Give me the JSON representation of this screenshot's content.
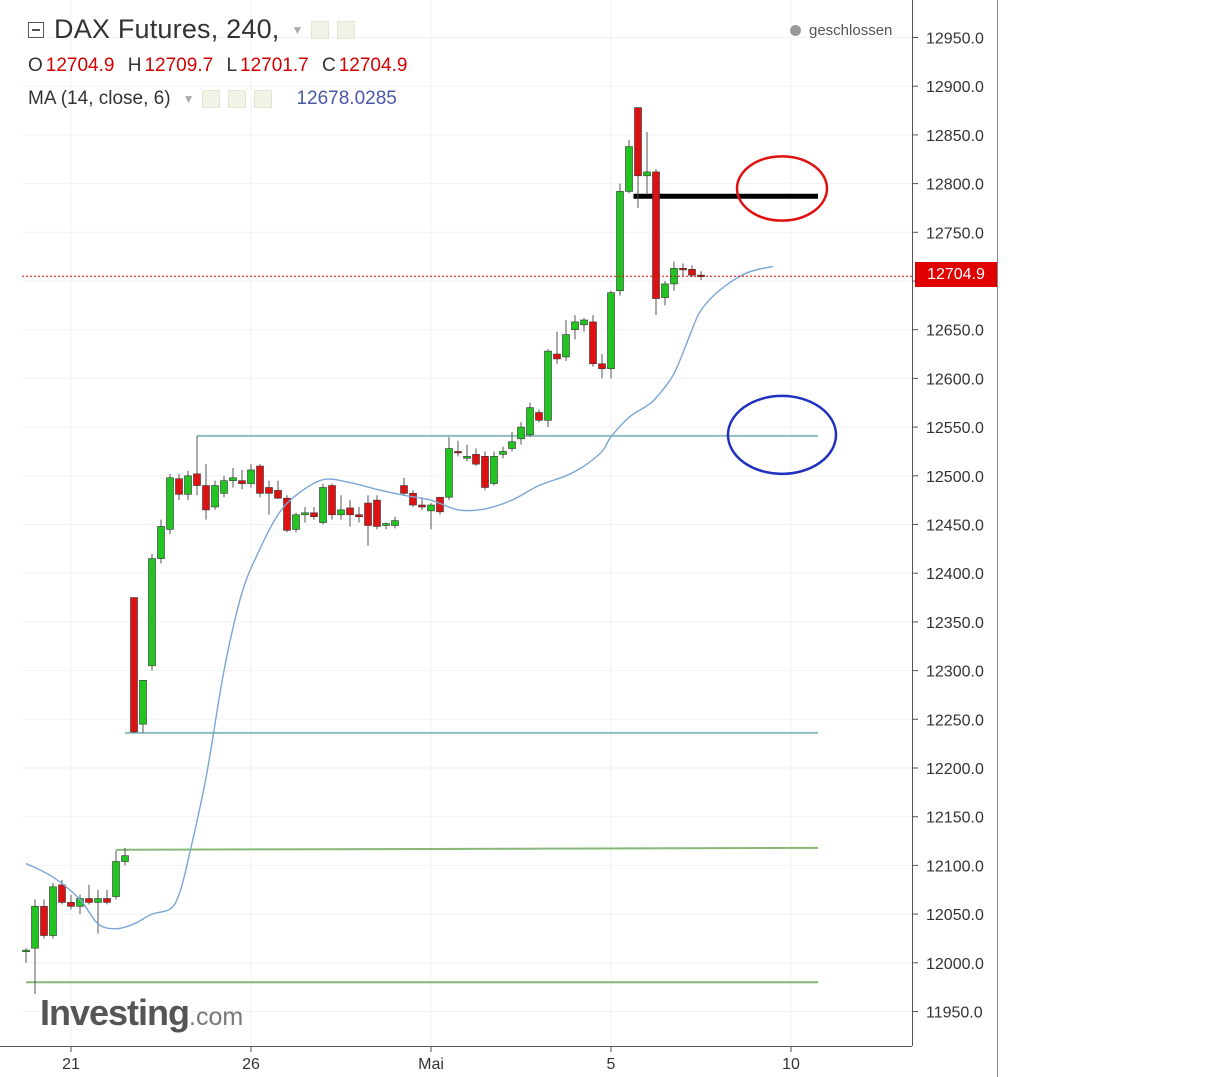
{
  "header": {
    "title": "DAX Futures, 240,",
    "ohlc": [
      {
        "label": "O",
        "value": "12704.9"
      },
      {
        "label": "H",
        "value": "12709.7"
      },
      {
        "label": "L",
        "value": "12701.7"
      },
      {
        "label": "C",
        "value": "12704.9"
      }
    ],
    "indicator_label": "MA (14, close, 6)",
    "indicator_value": "12678.0285",
    "status": "geschlossen"
  },
  "logo": {
    "main": "Investing",
    "suffix": ".com"
  },
  "colors": {
    "up": "#22c422",
    "down": "#dd1111",
    "ma": "#7aa6d6",
    "current_price": "#e00000",
    "hline_teal": "#8fbcbc",
    "hline_green": "#86b878",
    "resistance": "#000000",
    "circle_red": "#e01010",
    "circle_blue": "#2030c0"
  },
  "chart_data": {
    "type": "candlestick",
    "title": "DAX Futures, 240,",
    "ylim": [
      11930,
      12980
    ],
    "y_ticks": [
      "12950.0",
      "12900.0",
      "12850.0",
      "12800.0",
      "12750.0",
      "12700.0",
      "12650.0",
      "12600.0",
      "12550.0",
      "12500.0",
      "12450.0",
      "12400.0",
      "12350.0",
      "12300.0",
      "12250.0",
      "12200.0",
      "12150.0",
      "12100.0",
      "12050.0",
      "12000.0",
      "11950.0"
    ],
    "x_ticks": [
      {
        "label": "21",
        "index": 5
      },
      {
        "label": "26",
        "index": 25
      },
      {
        "label": "Mai",
        "index": 45
      },
      {
        "label": "5",
        "index": 65
      },
      {
        "label": "10",
        "index": 85
      }
    ],
    "current_price": 12704.9,
    "current_price_label": "12704.9",
    "candles": [
      {
        "o": 12012,
        "h": 12015,
        "l": 12000,
        "c": 12013
      },
      {
        "o": 12015,
        "h": 12065,
        "l": 11968,
        "c": 12058
      },
      {
        "o": 12058,
        "h": 12065,
        "l": 12025,
        "c": 12028
      },
      {
        "o": 12028,
        "h": 12082,
        "l": 12025,
        "c": 12078
      },
      {
        "o": 12080,
        "h": 12085,
        "l": 12060,
        "c": 12062
      },
      {
        "o": 12062,
        "h": 12070,
        "l": 12055,
        "c": 12058
      },
      {
        "o": 12058,
        "h": 12070,
        "l": 12050,
        "c": 12066
      },
      {
        "o": 12066,
        "h": 12080,
        "l": 12060,
        "c": 12062
      },
      {
        "o": 12062,
        "h": 12075,
        "l": 12030,
        "c": 12066
      },
      {
        "o": 12066,
        "h": 12075,
        "l": 12060,
        "c": 12062
      },
      {
        "o": 12068,
        "h": 12115,
        "l": 12065,
        "c": 12104
      },
      {
        "o": 12104,
        "h": 12118,
        "l": 12100,
        "c": 12110
      },
      {
        "o": 12375,
        "h": 12375,
        "l": 12236,
        "c": 12237
      },
      {
        "o": 12245,
        "h": 12290,
        "l": 12236,
        "c": 12290
      },
      {
        "o": 12305,
        "h": 12420,
        "l": 12300,
        "c": 12415
      },
      {
        "o": 12415,
        "h": 12455,
        "l": 12410,
        "c": 12448
      },
      {
        "o": 12445,
        "h": 12502,
        "l": 12440,
        "c": 12498
      },
      {
        "o": 12497,
        "h": 12502,
        "l": 12475,
        "c": 12481
      },
      {
        "o": 12481,
        "h": 12505,
        "l": 12475,
        "c": 12500
      },
      {
        "o": 12502,
        "h": 12541,
        "l": 12480,
        "c": 12490
      },
      {
        "o": 12490,
        "h": 12512,
        "l": 12455,
        "c": 12465
      },
      {
        "o": 12468,
        "h": 12495,
        "l": 12465,
        "c": 12490
      },
      {
        "o": 12482,
        "h": 12500,
        "l": 12478,
        "c": 12495
      },
      {
        "o": 12495,
        "h": 12508,
        "l": 12488,
        "c": 12498
      },
      {
        "o": 12495,
        "h": 12506,
        "l": 12486,
        "c": 12492
      },
      {
        "o": 12492,
        "h": 12512,
        "l": 12488,
        "c": 12506
      },
      {
        "o": 12510,
        "h": 12512,
        "l": 12478,
        "c": 12482
      },
      {
        "o": 12488,
        "h": 12495,
        "l": 12460,
        "c": 12482
      },
      {
        "o": 12485,
        "h": 12495,
        "l": 12476,
        "c": 12477
      },
      {
        "o": 12477,
        "h": 12480,
        "l": 12442,
        "c": 12444
      },
      {
        "o": 12445,
        "h": 12462,
        "l": 12442,
        "c": 12460
      },
      {
        "o": 12460,
        "h": 12468,
        "l": 12452,
        "c": 12462
      },
      {
        "o": 12462,
        "h": 12468,
        "l": 12455,
        "c": 12458
      },
      {
        "o": 12452,
        "h": 12492,
        "l": 12450,
        "c": 12488
      },
      {
        "o": 12490,
        "h": 12492,
        "l": 12455,
        "c": 12460
      },
      {
        "o": 12460,
        "h": 12480,
        "l": 12455,
        "c": 12465
      },
      {
        "o": 12467,
        "h": 12475,
        "l": 12448,
        "c": 12460
      },
      {
        "o": 12460,
        "h": 12468,
        "l": 12452,
        "c": 12458
      },
      {
        "o": 12472,
        "h": 12480,
        "l": 12428,
        "c": 12449
      },
      {
        "o": 12475,
        "h": 12480,
        "l": 12445,
        "c": 12448
      },
      {
        "o": 12449,
        "h": 12452,
        "l": 12445,
        "c": 12451
      },
      {
        "o": 12449,
        "h": 12458,
        "l": 12446,
        "c": 12454
      },
      {
        "o": 12490,
        "h": 12498,
        "l": 12480,
        "c": 12482
      },
      {
        "o": 12482,
        "h": 12485,
        "l": 12468,
        "c": 12470
      },
      {
        "o": 12470,
        "h": 12478,
        "l": 12465,
        "c": 12468
      },
      {
        "o": 12464,
        "h": 12472,
        "l": 12445,
        "c": 12470
      },
      {
        "o": 12478,
        "h": 12478,
        "l": 12460,
        "c": 12463
      },
      {
        "o": 12478,
        "h": 12540,
        "l": 12475,
        "c": 12528
      },
      {
        "o": 12525,
        "h": 12536,
        "l": 12520,
        "c": 12524
      },
      {
        "o": 12518,
        "h": 12532,
        "l": 12515,
        "c": 12520
      },
      {
        "o": 12522,
        "h": 12528,
        "l": 12510,
        "c": 12512
      },
      {
        "o": 12520,
        "h": 12525,
        "l": 12485,
        "c": 12488
      },
      {
        "o": 12492,
        "h": 12525,
        "l": 12490,
        "c": 12520
      },
      {
        "o": 12522,
        "h": 12530,
        "l": 12518,
        "c": 12525
      },
      {
        "o": 12528,
        "h": 12545,
        "l": 12525,
        "c": 12535
      },
      {
        "o": 12538,
        "h": 12555,
        "l": 12532,
        "c": 12550
      },
      {
        "o": 12542,
        "h": 12575,
        "l": 12540,
        "c": 12570
      },
      {
        "o": 12565,
        "h": 12568,
        "l": 12555,
        "c": 12557
      },
      {
        "o": 12557,
        "h": 12630,
        "l": 12550,
        "c": 12628
      },
      {
        "o": 12625,
        "h": 12648,
        "l": 12615,
        "c": 12620
      },
      {
        "o": 12622,
        "h": 12660,
        "l": 12618,
        "c": 12645
      },
      {
        "o": 12650,
        "h": 12665,
        "l": 12640,
        "c": 12658
      },
      {
        "o": 12655,
        "h": 12662,
        "l": 12648,
        "c": 12660
      },
      {
        "o": 12658,
        "h": 12665,
        "l": 12612,
        "c": 12615
      },
      {
        "o": 12615,
        "h": 12625,
        "l": 12600,
        "c": 12610
      },
      {
        "o": 12610,
        "h": 12690,
        "l": 12600,
        "c": 12688
      },
      {
        "o": 12690,
        "h": 12800,
        "l": 12685,
        "c": 12792
      },
      {
        "o": 12792,
        "h": 12845,
        "l": 12790,
        "c": 12838
      },
      {
        "o": 12878,
        "h": 12878,
        "l": 12775,
        "c": 12808
      },
      {
        "o": 12808,
        "h": 12853,
        "l": 12790,
        "c": 12812
      },
      {
        "o": 12812,
        "h": 12815,
        "l": 12665,
        "c": 12682
      },
      {
        "o": 12683,
        "h": 12700,
        "l": 12675,
        "c": 12697
      },
      {
        "o": 12697,
        "h": 12720,
        "l": 12690,
        "c": 12713
      },
      {
        "o": 12713,
        "h": 12718,
        "l": 12705,
        "c": 12712
      },
      {
        "o": 12712,
        "h": 12716,
        "l": 12704,
        "c": 12706
      },
      {
        "o": 12706,
        "h": 12710,
        "l": 12701,
        "c": 12705
      }
    ],
    "ma_series": {
      "name": "MA (14, close, 6)",
      "points": [
        [
          0,
          12102
        ],
        [
          3,
          12088
        ],
        [
          6,
          12065
        ],
        [
          8,
          12040
        ],
        [
          10,
          12035
        ],
        [
          12,
          12040
        ],
        [
          14,
          12050
        ],
        [
          16,
          12055
        ],
        [
          17,
          12070
        ],
        [
          18,
          12105
        ],
        [
          20,
          12190
        ],
        [
          22,
          12300
        ],
        [
          24,
          12380
        ],
        [
          26,
          12425
        ],
        [
          28,
          12460
        ],
        [
          30,
          12480
        ],
        [
          33,
          12496
        ],
        [
          36,
          12493
        ],
        [
          39,
          12486
        ],
        [
          42,
          12480
        ],
        [
          45,
          12475
        ],
        [
          48,
          12465
        ],
        [
          51,
          12466
        ],
        [
          54,
          12475
        ],
        [
          57,
          12490
        ],
        [
          60,
          12500
        ],
        [
          62,
          12510
        ],
        [
          64,
          12525
        ],
        [
          65,
          12540
        ],
        [
          67,
          12560
        ],
        [
          69,
          12572
        ],
        [
          70,
          12580
        ],
        [
          72,
          12605
        ],
        [
          74,
          12650
        ],
        [
          75,
          12670
        ],
        [
          77,
          12690
        ],
        [
          80,
          12708
        ],
        [
          83,
          12715
        ]
      ]
    },
    "hlines": [
      {
        "value": 12541,
        "x_start": 19,
        "x_end": 88,
        "style": "teal"
      },
      {
        "value": 12236,
        "x_start": 11,
        "x_end": 88,
        "style": "teal"
      },
      {
        "value": 12116,
        "value_end": 12118,
        "x_start": 10,
        "x_end": 88,
        "style": "green"
      },
      {
        "value": 11980,
        "x_start": 0,
        "x_end": 88,
        "style": "green"
      },
      {
        "value": 12787,
        "x_start": 67.5,
        "x_end": 88,
        "style": "resistance"
      }
    ],
    "annotations": [
      {
        "shape": "ellipse",
        "color": "red",
        "x_center": 84,
        "value_center": 12795,
        "x_radius": 5,
        "value_radius": 33
      },
      {
        "shape": "ellipse",
        "color": "blue",
        "x_center": 84,
        "value_center": 12542,
        "x_radius": 6,
        "value_radius": 40
      }
    ]
  }
}
